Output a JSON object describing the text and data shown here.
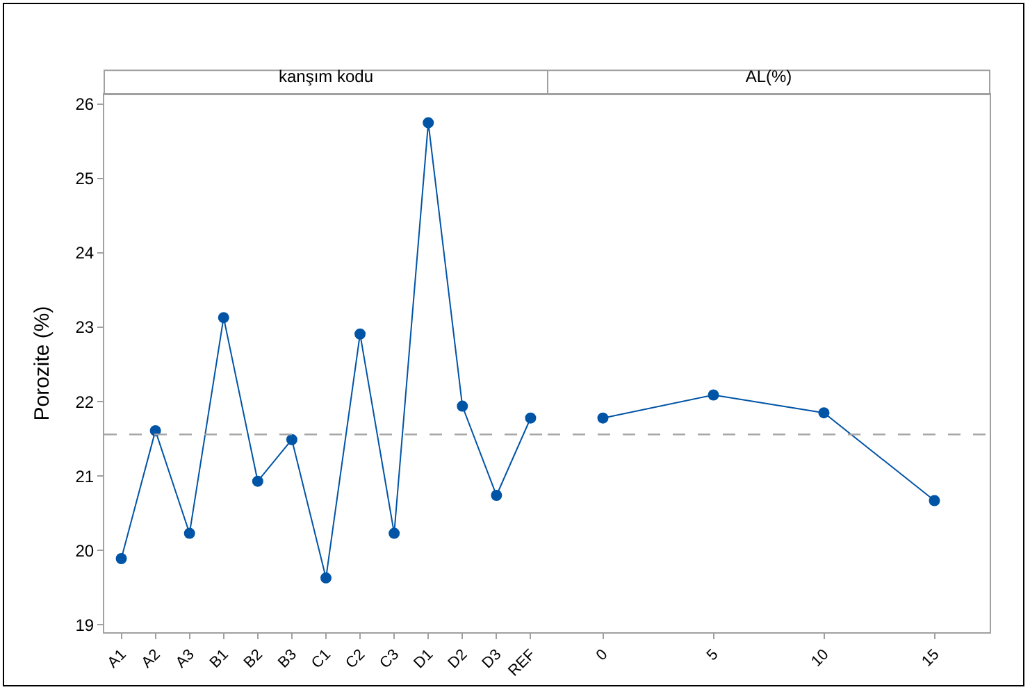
{
  "chart_data": [
    {
      "type": "line",
      "title": "kanşım kodu",
      "ylabel": "Porozite (%)",
      "categories": [
        "A1",
        "A2",
        "A3",
        "B1",
        "B2",
        "B3",
        "C1",
        "C2",
        "C3",
        "D1",
        "D2",
        "D3",
        "REF"
      ],
      "series": [
        {
          "color": "#0054a6",
          "values": [
            19.89,
            21.61,
            20.23,
            23.13,
            20.93,
            21.49,
            19.63,
            22.91,
            20.23,
            25.75,
            21.94,
            20.74,
            21.78
          ]
        }
      ],
      "ylim": [
        18.9,
        26.13
      ],
      "yticks": [
        19,
        20,
        21,
        22,
        23,
        24,
        25,
        26
      ],
      "ref_lines": [
        {
          "axis": "y",
          "value": 21.56,
          "color": "#a6a6a6",
          "line_style": "dashed"
        }
      ],
      "marker": "circle",
      "line_style": "solid",
      "grid": false
    },
    {
      "type": "line",
      "title": "AL(%)",
      "categories": [
        "0",
        "5",
        "10",
        "15"
      ],
      "series": [
        {
          "color": "#0054a6",
          "values": [
            21.78,
            22.09,
            21.85,
            20.67
          ]
        }
      ],
      "ylim": [
        18.9,
        26.13
      ],
      "tick_labels": "x",
      "ref_lines": [
        {
          "axis": "y",
          "value": 21.56,
          "color": "#a6a6a6",
          "line_style": "dashed"
        }
      ],
      "marker": "circle",
      "line_style": "solid",
      "grid": false
    }
  ]
}
